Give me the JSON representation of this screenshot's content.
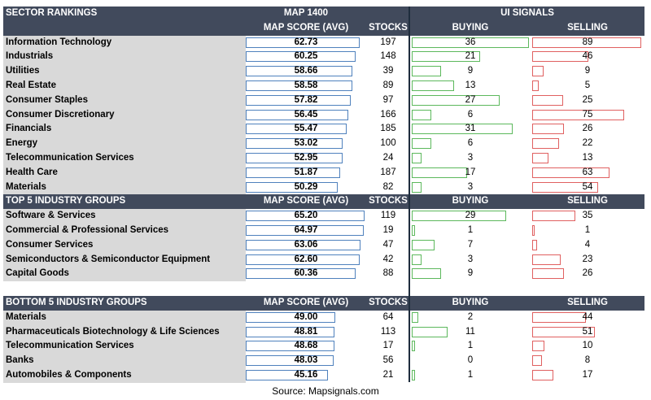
{
  "chart_data": {
    "type": "table",
    "header": {
      "section": "SECTOR RANKINGS",
      "map": "MAP 1400",
      "signals": "UI SIGNALS",
      "score": "MAP SCORE (AVG)",
      "stocks": "STOCKS",
      "buying": "BUYING",
      "selling": "SELLING"
    },
    "sectors": [
      {
        "name": "Information Technology",
        "score": "62.73",
        "stocks": "197",
        "buying": 36,
        "selling": 89
      },
      {
        "name": "Industrials",
        "score": "60.25",
        "stocks": "148",
        "buying": 21,
        "selling": 46
      },
      {
        "name": "Utilities",
        "score": "58.66",
        "stocks": "39",
        "buying": 9,
        "selling": 9
      },
      {
        "name": "Real Estate",
        "score": "58.58",
        "stocks": "89",
        "buying": 13,
        "selling": 5
      },
      {
        "name": "Consumer Staples",
        "score": "57.82",
        "stocks": "97",
        "buying": 27,
        "selling": 25
      },
      {
        "name": "Consumer Discretionary",
        "score": "56.45",
        "stocks": "166",
        "buying": 6,
        "selling": 75
      },
      {
        "name": "Financials",
        "score": "55.47",
        "stocks": "185",
        "buying": 31,
        "selling": 26
      },
      {
        "name": "Energy",
        "score": "53.02",
        "stocks": "100",
        "buying": 6,
        "selling": 22
      },
      {
        "name": "Telecommunication Services",
        "score": "52.95",
        "stocks": "24",
        "buying": 3,
        "selling": 13
      },
      {
        "name": "Health Care",
        "score": "51.87",
        "stocks": "187",
        "buying": 17,
        "selling": 63
      },
      {
        "name": "Materials",
        "score": "50.29",
        "stocks": "82",
        "buying": 3,
        "selling": 54
      }
    ],
    "top": {
      "title": "TOP 5 INDUSTRY GROUPS",
      "rows": [
        {
          "name": "Software & Services",
          "score": "65.20",
          "stocks": "119",
          "buying": 29,
          "selling": 35
        },
        {
          "name": "Commercial & Professional Services",
          "score": "64.97",
          "stocks": "19",
          "buying": 1,
          "selling": 1
        },
        {
          "name": "Consumer Services",
          "score": "63.06",
          "stocks": "47",
          "buying": 7,
          "selling": 4
        },
        {
          "name": "Semiconductors & Semiconductor Equipment",
          "score": "62.60",
          "stocks": "42",
          "buying": 3,
          "selling": 23
        },
        {
          "name": "Capital Goods",
          "score": "60.36",
          "stocks": "88",
          "buying": 9,
          "selling": 26
        }
      ]
    },
    "bottom": {
      "title": "BOTTOM 5 INDUSTRY GROUPS",
      "rows": [
        {
          "name": "Materials",
          "score": "49.00",
          "stocks": "64",
          "buying": 2,
          "selling": 44
        },
        {
          "name": "Pharmaceuticals Biotechnology & Life Sciences",
          "score": "48.81",
          "stocks": "113",
          "buying": 11,
          "selling": 51
        },
        {
          "name": "Telecommunication Services",
          "score": "48.68",
          "stocks": "17",
          "buying": 1,
          "selling": 10
        },
        {
          "name": "Banks",
          "score": "48.03",
          "stocks": "56",
          "buying": 0,
          "selling": 8
        },
        {
          "name": "Automobiles & Components",
          "score": "45.16",
          "stocks": "21",
          "buying": 1,
          "selling": 17
        }
      ]
    },
    "score_bar_range": [
      0,
      65.2
    ],
    "buy_bar_range": [
      0,
      36
    ],
    "sell_bar_range": [
      0,
      89
    ],
    "colors": {
      "header": "#414a5c",
      "label_bg": "#d9d9d9",
      "score_bar": "#4f81bd",
      "buy_bar": "#5cb85c",
      "sell_bar": "#e06060"
    }
  },
  "source": "Source: Mapsignals.com"
}
